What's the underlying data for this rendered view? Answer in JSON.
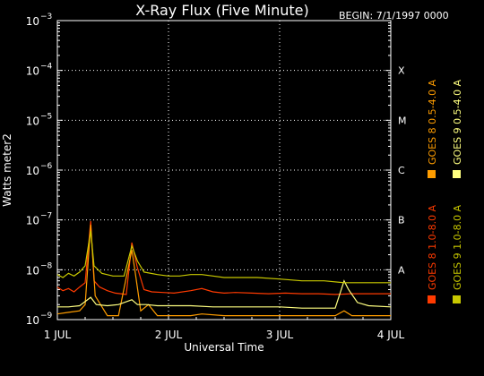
{
  "chart_data": {
    "type": "line",
    "title": "X-Ray Flux (Five Minute)",
    "begin_label": "BEGIN: 7/1/1997 0000",
    "xlabel": "Universal Time",
    "ylabel": "Watts meter2",
    "y_scale": "log",
    "ylim": [
      1e-09,
      0.001
    ],
    "xlim": [
      0,
      3
    ],
    "x_ticks": [
      {
        "value": 0,
        "label": "1 JUL"
      },
      {
        "value": 1,
        "label": "2 JUL"
      },
      {
        "value": 2,
        "label": "3 JUL"
      },
      {
        "value": 3,
        "label": "4 JUL"
      }
    ],
    "y_ticks": [
      {
        "exp": -9,
        "label": "10",
        "sup": "−9"
      },
      {
        "exp": -8,
        "label": "10",
        "sup": "−8"
      },
      {
        "exp": -7,
        "label": "10",
        "sup": "−7"
      },
      {
        "exp": -6,
        "label": "10",
        "sup": "−6"
      },
      {
        "exp": -5,
        "label": "10",
        "sup": "−5"
      },
      {
        "exp": -4,
        "label": "10",
        "sup": "−4"
      },
      {
        "exp": -3,
        "label": "10",
        "sup": "−3"
      }
    ],
    "flare_classes": [
      {
        "label": "X",
        "value": 0.0001
      },
      {
        "label": "M",
        "value": 1e-05
      },
      {
        "label": "C",
        "value": 1e-06
      },
      {
        "label": "B",
        "value": 1e-07
      },
      {
        "label": "A",
        "value": 1e-08
      }
    ],
    "grid": true,
    "series": [
      {
        "name": "GOES 8 1.0-8.0 A",
        "color": "#ff3a00",
        "x": [
          0.0,
          0.05,
          0.1,
          0.15,
          0.2,
          0.25,
          0.3,
          0.33,
          0.38,
          0.45,
          0.52,
          0.62,
          0.67,
          0.72,
          0.78,
          0.85,
          0.95,
          1.05,
          1.2,
          1.3,
          1.4,
          1.5,
          1.6,
          1.75,
          1.9,
          2.05,
          2.2,
          2.35,
          2.5,
          2.65,
          2.8,
          3.0
        ],
        "y": [
          4.5e-09,
          3.8e-09,
          4.2e-09,
          3.6e-09,
          4.5e-09,
          5.5e-09,
          9.5e-08,
          6e-09,
          4.5e-09,
          3.8e-09,
          3.4e-09,
          3.2e-09,
          3.5e-08,
          1.1e-08,
          4e-09,
          3.6e-09,
          3.5e-09,
          3.4e-09,
          3.8e-09,
          4.2e-09,
          3.6e-09,
          3.4e-09,
          3.5e-09,
          3.4e-09,
          3.3e-09,
          3.4e-09,
          3.3e-09,
          3.3e-09,
          3.2e-09,
          3.3e-09,
          3.3e-09,
          3.3e-09
        ]
      },
      {
        "name": "GOES 8 0.5-4.0 A",
        "color": "#ff9d00",
        "x": [
          0.0,
          0.1,
          0.2,
          0.25,
          0.3,
          0.34,
          0.45,
          0.55,
          0.67,
          0.7,
          0.75,
          0.82,
          0.9,
          1.0,
          1.2,
          1.3,
          1.5,
          1.8,
          2.0,
          2.3,
          2.5,
          2.58,
          2.65,
          2.8,
          3.0
        ],
        "y": [
          1.3e-09,
          1.4e-09,
          1.5e-09,
          2e-09,
          8e-08,
          3e-09,
          1.2e-09,
          1.2e-09,
          2.5e-08,
          9e-09,
          1.5e-09,
          2e-09,
          1.2e-09,
          1.2e-09,
          1.2e-09,
          1.3e-09,
          1.2e-09,
          1.2e-09,
          1.2e-09,
          1.2e-09,
          1.2e-09,
          1.5e-09,
          1.2e-09,
          1.2e-09,
          1.2e-09
        ]
      },
      {
        "name": "GOES 9 0.5-4.0 A",
        "color": "#ffff80",
        "x": [
          0.0,
          0.1,
          0.2,
          0.3,
          0.35,
          0.45,
          0.55,
          0.67,
          0.72,
          0.8,
          0.9,
          1.0,
          1.2,
          1.4,
          1.6,
          1.8,
          2.0,
          2.2,
          2.4,
          2.5,
          2.58,
          2.62,
          2.7,
          2.8,
          3.0
        ],
        "y": [
          1.8e-09,
          1.8e-09,
          1.9e-09,
          2.8e-09,
          2e-09,
          1.9e-09,
          2e-09,
          2.5e-09,
          2e-09,
          2e-09,
          1.9e-09,
          1.9e-09,
          1.9e-09,
          1.8e-09,
          1.8e-09,
          1.8e-09,
          1.8e-09,
          1.7e-09,
          1.7e-09,
          1.7e-09,
          6e-09,
          4e-09,
          2.2e-09,
          1.9e-09,
          1.8e-09
        ]
      },
      {
        "name": "GOES 9 1.0-8.0 A",
        "color": "#c8c800",
        "x": [
          0.0,
          0.05,
          0.1,
          0.15,
          0.2,
          0.25,
          0.3,
          0.33,
          0.4,
          0.5,
          0.6,
          0.67,
          0.72,
          0.78,
          0.9,
          1.0,
          1.1,
          1.2,
          1.3,
          1.4,
          1.5,
          1.6,
          1.8,
          2.0,
          2.2,
          2.4,
          2.58,
          2.7,
          2.85,
          3.0
        ],
        "y": [
          8e-09,
          7e-09,
          8.5e-09,
          7.5e-09,
          9e-09,
          1.2e-08,
          6e-08,
          1.2e-08,
          8.5e-09,
          7.5e-09,
          7.5e-09,
          3e-08,
          1.5e-08,
          9e-09,
          8e-09,
          7.5e-09,
          7.5e-09,
          8e-09,
          8e-09,
          7.5e-09,
          7e-09,
          7e-09,
          7e-09,
          6.5e-09,
          6e-09,
          6e-09,
          5.5e-09,
          5.5e-09,
          5.5e-09,
          5.5e-09
        ]
      }
    ],
    "legend_position": "right, vertical"
  }
}
